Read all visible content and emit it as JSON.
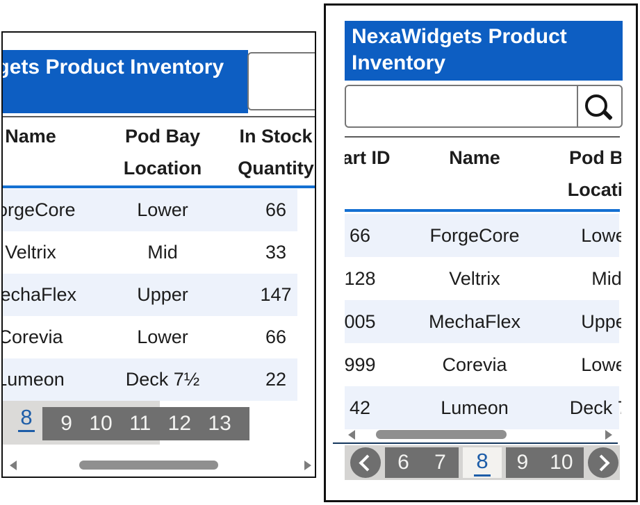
{
  "title": "NexaWidgets Product Inventory",
  "columns": {
    "part_id": "Part ID",
    "name": "Name",
    "location_line1": "Pod Bay",
    "location_line2": "Location",
    "stock_line1": "In Stock",
    "stock_line2": "Quantity"
  },
  "rows": [
    {
      "part_id": "66",
      "name": "ForgeCore",
      "location": "Lower",
      "qty": "66"
    },
    {
      "part_id": "128",
      "name": "Veltrix",
      "location": "Mid",
      "qty": "33"
    },
    {
      "part_id": "005",
      "name": "MechaFlex",
      "location": "Upper",
      "qty": "147"
    },
    {
      "part_id": "999",
      "name": "Corevia",
      "location": "Lower",
      "qty": "66"
    },
    {
      "part_id": "42",
      "name": "Lumeon",
      "location": "Deck 7½",
      "qty": "22"
    }
  ],
  "left_pagination": {
    "current": "8",
    "pages": [
      "9",
      "10",
      "11",
      "12",
      "13"
    ]
  },
  "right_pagination": {
    "pages_before": [
      "6",
      "7"
    ],
    "current": "8",
    "pages_after": [
      "9",
      "10"
    ]
  },
  "search": {
    "value": "",
    "placeholder": ""
  },
  "icons": {
    "search": "search-icon",
    "prev": "chevron-left-icon",
    "next": "chevron-right-icon",
    "scroll_left": "scroll-left-arrow-icon",
    "scroll_right": "scroll-right-arrow-icon"
  },
  "colors": {
    "header_blue": "#0d5ec2",
    "divider_blue": "#1470d2",
    "row_alt": "#edf2fb",
    "pagination_dark": "#6f6f6f",
    "pagination_light": "#d5d4d2",
    "page_link_blue": "#1d5da8"
  }
}
